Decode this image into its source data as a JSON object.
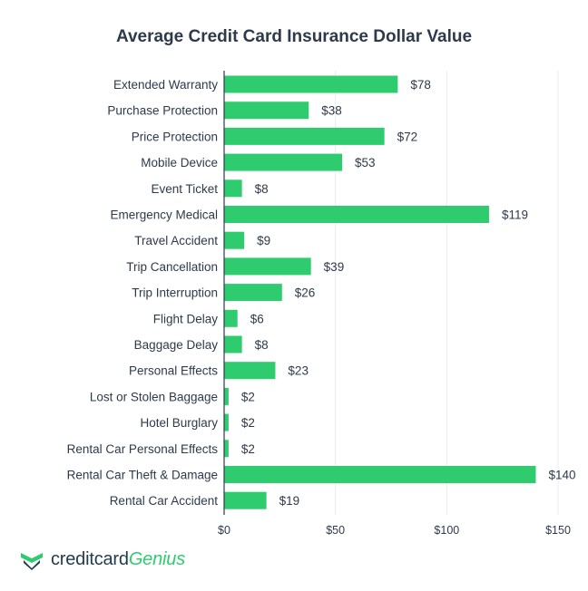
{
  "brand": {
    "name_part1": "creditcard",
    "name_part2": "Genius",
    "accent": "#2ecc6f",
    "dark": "#1f3b4d"
  },
  "chart_data": {
    "type": "bar",
    "orientation": "horizontal",
    "title": "Average Credit Card Insurance Dollar Value",
    "xlabel": "",
    "ylabel": "",
    "xlim": [
      0,
      150
    ],
    "xticks": [
      0,
      50,
      100,
      150
    ],
    "xtick_labels": [
      "$0",
      "$50",
      "$100",
      "$150"
    ],
    "grid": "vertical",
    "bar_color": "#2ecc6f",
    "categories": [
      "Extended Warranty",
      "Purchase Protection",
      "Price Protection",
      "Mobile Device",
      "Event Ticket",
      "Emergency Medical",
      "Travel Accident",
      "Trip Cancellation",
      "Trip Interruption",
      "Flight Delay",
      "Baggage Delay",
      "Personal Effects",
      "Lost or Stolen Baggage",
      "Hotel Burglary",
      "Rental Car Personal Effects",
      "Rental Car Theft & Damage",
      "Rental Car Accident"
    ],
    "values": [
      78,
      38,
      72,
      53,
      8,
      119,
      9,
      39,
      26,
      6,
      8,
      23,
      2,
      2,
      2,
      140,
      19
    ],
    "value_labels": [
      "$78",
      "$38",
      "$72",
      "$53",
      "$8",
      "$119",
      "$9",
      "$39",
      "$26",
      "$6",
      "$8",
      "$23",
      "$2",
      "$2",
      "$2",
      "$140",
      "$19"
    ]
  }
}
